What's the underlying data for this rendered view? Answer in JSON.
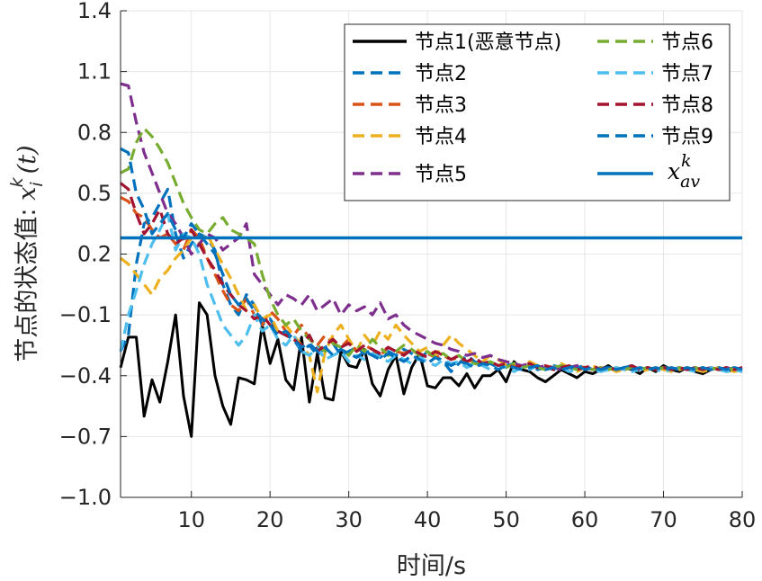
{
  "chart_data": {
    "type": "line",
    "title": "",
    "xlabel": "时间/s",
    "ylabel": {
      "prefix": "节点的状态值: ",
      "var": "x",
      "sub": "i",
      "sup": "k",
      "arg": "(t)"
    },
    "xlim": [
      1,
      80
    ],
    "ylim": [
      -1.0,
      1.4
    ],
    "xticks": [
      10,
      20,
      30,
      40,
      50,
      60,
      70,
      80
    ],
    "xtick_labels": [
      "10",
      "20",
      "30",
      "40",
      "50",
      "60",
      "70",
      "80"
    ],
    "yticks": [
      1.4,
      1.1,
      0.8,
      0.5,
      0.2,
      -0.1,
      -0.4,
      -0.7,
      -1.0
    ],
    "ytick_labels": [
      "1.4",
      "1.1",
      "0.8",
      "0.5",
      "0.2",
      "−0.1",
      "−0.4",
      "−0.7",
      "−1.0"
    ],
    "grid": true,
    "legend_position": "top-right",
    "legend_label_average": {
      "var": "x",
      "sub": "av",
      "sup": "k"
    },
    "x": [
      1,
      2,
      3,
      4,
      5,
      6,
      7,
      8,
      9,
      10,
      11,
      12,
      13,
      14,
      15,
      16,
      17,
      18,
      19,
      20,
      21,
      22,
      23,
      24,
      25,
      26,
      27,
      28,
      29,
      30,
      31,
      32,
      33,
      34,
      35,
      36,
      37,
      38,
      39,
      40,
      41,
      42,
      43,
      44,
      45,
      46,
      47,
      48,
      49,
      50,
      51,
      52,
      53,
      54,
      55,
      56,
      57,
      58,
      59,
      60,
      61,
      62,
      63,
      64,
      65,
      66,
      67,
      68,
      69,
      70,
      71,
      72,
      73,
      74,
      75,
      76,
      77,
      78,
      79,
      80
    ],
    "series": [
      {
        "name": "节点1(恶意节点)",
        "color": "#000000",
        "dash": "solid",
        "values": [
          -0.36,
          -0.21,
          -0.21,
          -0.6,
          -0.42,
          -0.53,
          -0.33,
          -0.1,
          -0.5,
          -0.7,
          -0.04,
          -0.1,
          -0.4,
          -0.55,
          -0.64,
          -0.41,
          -0.42,
          -0.44,
          -0.15,
          -0.34,
          -0.22,
          -0.42,
          -0.47,
          -0.21,
          -0.53,
          -0.29,
          -0.51,
          -0.52,
          -0.28,
          -0.35,
          -0.36,
          -0.27,
          -0.44,
          -0.5,
          -0.37,
          -0.3,
          -0.49,
          -0.36,
          -0.29,
          -0.45,
          -0.46,
          -0.41,
          -0.41,
          -0.45,
          -0.39,
          -0.46,
          -0.4,
          -0.4,
          -0.37,
          -0.43,
          -0.33,
          -0.37,
          -0.38,
          -0.41,
          -0.43,
          -0.4,
          -0.37,
          -0.39,
          -0.41,
          -0.38,
          -0.39,
          -0.37,
          -0.35,
          -0.38,
          -0.36,
          -0.37,
          -0.39,
          -0.36,
          -0.38,
          -0.35,
          -0.37,
          -0.38,
          -0.36,
          -0.38,
          -0.39,
          -0.37,
          -0.36,
          -0.38,
          -0.37,
          -0.38
        ]
      },
      {
        "name": "节点2",
        "color": "#0072BD",
        "dash": "dashed",
        "values": [
          -0.28,
          -0.2,
          0.15,
          0.35,
          0.38,
          0.45,
          0.52,
          0.3,
          0.18,
          0.25,
          0.3,
          0.28,
          0.22,
          0.05,
          -0.05,
          -0.1,
          0.0,
          -0.05,
          -0.15,
          -0.12,
          -0.18,
          -0.2,
          -0.22,
          -0.28,
          -0.25,
          -0.3,
          -0.26,
          -0.24,
          -0.3,
          -0.28,
          -0.26,
          -0.29,
          -0.27,
          -0.31,
          -0.28,
          -0.3,
          -0.27,
          -0.29,
          -0.32,
          -0.28,
          -0.3,
          -0.33,
          -0.38,
          -0.34,
          -0.3,
          -0.33,
          -0.35,
          -0.34,
          -0.36,
          -0.35,
          -0.34,
          -0.36,
          -0.35,
          -0.37,
          -0.36,
          -0.35,
          -0.36,
          -0.37,
          -0.36,
          -0.35,
          -0.37,
          -0.36,
          -0.36,
          -0.37,
          -0.36,
          -0.35,
          -0.37,
          -0.36,
          -0.37,
          -0.36,
          -0.36,
          -0.37,
          -0.36,
          -0.37,
          -0.36,
          -0.37,
          -0.36,
          -0.37,
          -0.36,
          -0.37
        ]
      },
      {
        "name": "节点3",
        "color": "#D95319",
        "dash": "dashed",
        "values": [
          0.48,
          0.46,
          0.4,
          0.38,
          0.32,
          0.28,
          0.3,
          0.25,
          0.22,
          0.32,
          0.28,
          0.18,
          0.1,
          0.02,
          -0.05,
          -0.08,
          -0.02,
          -0.1,
          -0.15,
          -0.08,
          -0.12,
          -0.18,
          -0.2,
          -0.15,
          -0.22,
          -0.25,
          -0.2,
          -0.24,
          -0.26,
          -0.22,
          -0.28,
          -0.25,
          -0.27,
          -0.3,
          -0.26,
          -0.28,
          -0.29,
          -0.27,
          -0.3,
          -0.29,
          -0.31,
          -0.3,
          -0.32,
          -0.31,
          -0.33,
          -0.32,
          -0.34,
          -0.33,
          -0.35,
          -0.34,
          -0.35,
          -0.36,
          -0.35,
          -0.36,
          -0.35,
          -0.36,
          -0.37,
          -0.36,
          -0.35,
          -0.36,
          -0.37,
          -0.36,
          -0.37,
          -0.36,
          -0.37,
          -0.36,
          -0.37,
          -0.36,
          -0.37,
          -0.36,
          -0.37,
          -0.36,
          -0.37,
          -0.36,
          -0.37,
          -0.36,
          -0.37,
          -0.36,
          -0.37,
          -0.36
        ]
      },
      {
        "name": "节点4",
        "color": "#EDB120",
        "dash": "dashed",
        "values": [
          0.18,
          0.15,
          0.1,
          0.05,
          0.0,
          0.08,
          0.12,
          0.18,
          0.22,
          0.28,
          0.25,
          0.3,
          0.22,
          0.15,
          0.08,
          0.0,
          -0.08,
          -0.05,
          -0.12,
          -0.1,
          -0.18,
          -0.15,
          -0.2,
          -0.25,
          -0.3,
          -0.48,
          -0.28,
          -0.2,
          -0.15,
          -0.22,
          -0.28,
          -0.2,
          -0.25,
          -0.18,
          -0.22,
          -0.15,
          -0.2,
          -0.24,
          -0.28,
          -0.26,
          -0.3,
          -0.25,
          -0.2,
          -0.24,
          -0.27,
          -0.3,
          -0.33,
          -0.3,
          -0.32,
          -0.35,
          -0.34,
          -0.36,
          -0.33,
          -0.35,
          -0.37,
          -0.36,
          -0.34,
          -0.36,
          -0.38,
          -0.36,
          -0.35,
          -0.37,
          -0.36,
          -0.38,
          -0.37,
          -0.36,
          -0.38,
          -0.37,
          -0.36,
          -0.37,
          -0.38,
          -0.37,
          -0.36,
          -0.37,
          -0.38,
          -0.37,
          -0.36,
          -0.37,
          -0.38,
          -0.37
        ]
      },
      {
        "name": "节点5",
        "color": "#7E2F8E",
        "dash": "dashed",
        "values": [
          1.04,
          1.03,
          0.85,
          0.7,
          0.6,
          0.5,
          0.4,
          0.35,
          0.28,
          0.2,
          0.25,
          0.3,
          0.28,
          0.22,
          0.25,
          0.28,
          0.35,
          0.1,
          0.05,
          0.0,
          -0.05,
          0.0,
          -0.02,
          -0.05,
          0.0,
          -0.08,
          -0.05,
          -0.02,
          -0.1,
          -0.05,
          -0.08,
          -0.06,
          -0.1,
          -0.04,
          -0.12,
          -0.1,
          -0.15,
          -0.18,
          -0.2,
          -0.22,
          -0.24,
          -0.25,
          -0.27,
          -0.28,
          -0.3,
          -0.29,
          -0.31,
          -0.3,
          -0.32,
          -0.33,
          -0.34,
          -0.35,
          -0.34,
          -0.36,
          -0.35,
          -0.36,
          -0.37,
          -0.36,
          -0.35,
          -0.36,
          -0.37,
          -0.36,
          -0.37,
          -0.36,
          -0.37,
          -0.36,
          -0.37,
          -0.36,
          -0.37,
          -0.36,
          -0.37,
          -0.36,
          -0.37,
          -0.36,
          -0.37,
          -0.36,
          -0.37,
          -0.36,
          -0.37,
          -0.36
        ]
      },
      {
        "name": "节点6",
        "color": "#77AC30",
        "dash": "dashed",
        "values": [
          0.6,
          0.62,
          0.75,
          0.82,
          0.78,
          0.72,
          0.65,
          0.55,
          0.45,
          0.38,
          0.32,
          0.3,
          0.35,
          0.38,
          0.32,
          0.3,
          0.28,
          0.25,
          0.1,
          -0.02,
          -0.1,
          -0.15,
          -0.12,
          -0.18,
          -0.22,
          -0.25,
          -0.28,
          -0.24,
          -0.26,
          -0.3,
          -0.25,
          -0.28,
          -0.22,
          -0.26,
          -0.3,
          -0.28,
          -0.25,
          -0.27,
          -0.3,
          -0.28,
          -0.31,
          -0.29,
          -0.32,
          -0.3,
          -0.33,
          -0.34,
          -0.35,
          -0.33,
          -0.35,
          -0.36,
          -0.34,
          -0.36,
          -0.35,
          -0.36,
          -0.37,
          -0.36,
          -0.35,
          -0.36,
          -0.37,
          -0.36,
          -0.37,
          -0.36,
          -0.37,
          -0.36,
          -0.37,
          -0.36,
          -0.37,
          -0.36,
          -0.37,
          -0.36,
          -0.37,
          -0.36,
          -0.37,
          -0.36,
          -0.37,
          -0.36,
          -0.37,
          -0.36,
          -0.37,
          -0.36
        ]
      },
      {
        "name": "节点7",
        "color": "#4DBEEE",
        "dash": "dashed",
        "values": [
          -0.28,
          -0.1,
          0.02,
          0.15,
          0.25,
          0.32,
          0.4,
          0.22,
          0.3,
          0.28,
          0.2,
          0.05,
          -0.05,
          -0.15,
          -0.2,
          -0.25,
          -0.2,
          -0.1,
          -0.18,
          -0.15,
          -0.22,
          -0.25,
          -0.2,
          -0.28,
          -0.3,
          -0.26,
          -0.32,
          -0.3,
          -0.28,
          -0.33,
          -0.3,
          -0.32,
          -0.29,
          -0.31,
          -0.33,
          -0.3,
          -0.32,
          -0.34,
          -0.31,
          -0.33,
          -0.35,
          -0.32,
          -0.34,
          -0.33,
          -0.36,
          -0.34,
          -0.35,
          -0.37,
          -0.35,
          -0.36,
          -0.38,
          -0.36,
          -0.37,
          -0.35,
          -0.36,
          -0.37,
          -0.36,
          -0.38,
          -0.37,
          -0.36,
          -0.37,
          -0.38,
          -0.37,
          -0.36,
          -0.37,
          -0.38,
          -0.37,
          -0.36,
          -0.37,
          -0.38,
          -0.37,
          -0.36,
          -0.37,
          -0.38,
          -0.37,
          -0.36,
          -0.37,
          -0.38,
          -0.37,
          -0.38
        ]
      },
      {
        "name": "节点8",
        "color": "#A2142F",
        "dash": "dashed",
        "values": [
          0.55,
          0.52,
          0.4,
          0.3,
          0.35,
          0.42,
          0.3,
          0.25,
          0.28,
          0.32,
          0.25,
          0.18,
          0.12,
          0.05,
          0.0,
          -0.05,
          -0.08,
          -0.12,
          -0.1,
          -0.15,
          -0.18,
          -0.2,
          -0.22,
          -0.25,
          -0.2,
          -0.28,
          -0.25,
          -0.22,
          -0.26,
          -0.24,
          -0.28,
          -0.25,
          -0.27,
          -0.29,
          -0.26,
          -0.28,
          -0.3,
          -0.27,
          -0.29,
          -0.31,
          -0.28,
          -0.3,
          -0.32,
          -0.3,
          -0.33,
          -0.31,
          -0.34,
          -0.33,
          -0.35,
          -0.34,
          -0.36,
          -0.35,
          -0.34,
          -0.36,
          -0.35,
          -0.37,
          -0.36,
          -0.35,
          -0.37,
          -0.36,
          -0.35,
          -0.37,
          -0.36,
          -0.37,
          -0.36,
          -0.35,
          -0.37,
          -0.36,
          -0.37,
          -0.36,
          -0.37,
          -0.36,
          -0.37,
          -0.36,
          -0.37,
          -0.36,
          -0.37,
          -0.36,
          -0.37,
          -0.36
        ]
      },
      {
        "name": "节点9",
        "color": "#0072BD",
        "dash": "dashed",
        "values": [
          0.72,
          0.7,
          0.5,
          0.42,
          0.3,
          0.35,
          0.4,
          0.32,
          0.28,
          0.35,
          0.3,
          0.25,
          0.2,
          0.1,
          0.0,
          -0.05,
          -0.02,
          -0.08,
          -0.12,
          -0.15,
          -0.2,
          -0.18,
          -0.22,
          -0.26,
          -0.24,
          -0.28,
          -0.26,
          -0.3,
          -0.27,
          -0.29,
          -0.31,
          -0.28,
          -0.3,
          -0.32,
          -0.29,
          -0.31,
          -0.33,
          -0.3,
          -0.32,
          -0.34,
          -0.31,
          -0.33,
          -0.35,
          -0.33,
          -0.34,
          -0.36,
          -0.34,
          -0.35,
          -0.37,
          -0.35,
          -0.36,
          -0.37,
          -0.36,
          -0.35,
          -0.37,
          -0.36,
          -0.37,
          -0.36,
          -0.35,
          -0.37,
          -0.36,
          -0.37,
          -0.36,
          -0.37,
          -0.36,
          -0.37,
          -0.36,
          -0.37,
          -0.36,
          -0.37,
          -0.36,
          -0.37,
          -0.36,
          -0.37,
          -0.36,
          -0.37,
          -0.36,
          -0.37,
          -0.36,
          -0.37
        ]
      }
    ],
    "average": {
      "color": "#0072BD",
      "value": 0.28
    }
  }
}
